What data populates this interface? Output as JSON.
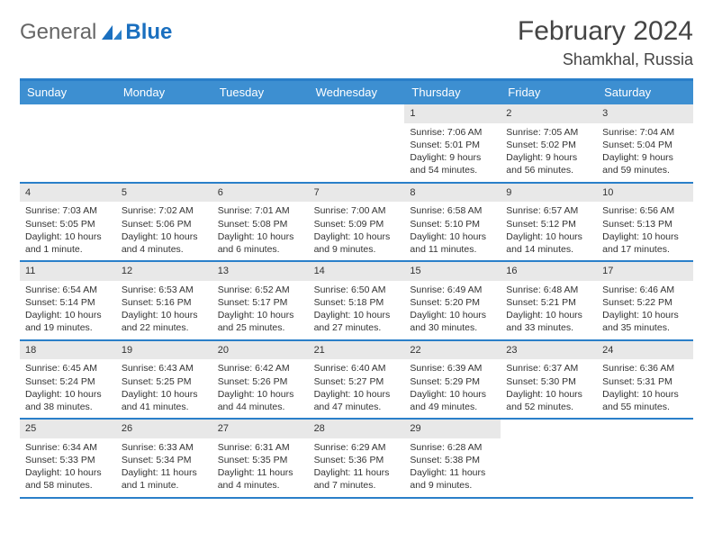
{
  "logo": {
    "word1": "General",
    "word2": "Blue"
  },
  "title": {
    "month": "February 2024",
    "location": "Shamkhal, Russia"
  },
  "colors": {
    "header_bg": "#3d8fd1",
    "header_border": "#2a7fc9",
    "datebar_bg": "#e8e8e8",
    "text": "#333333",
    "logo_blue": "#1a6fbf"
  },
  "dayheaders": [
    "Sunday",
    "Monday",
    "Tuesday",
    "Wednesday",
    "Thursday",
    "Friday",
    "Saturday"
  ],
  "weeks": [
    [
      {
        "date": "",
        "sunrise": "",
        "sunset": "",
        "daylight1": "",
        "daylight2": ""
      },
      {
        "date": "",
        "sunrise": "",
        "sunset": "",
        "daylight1": "",
        "daylight2": ""
      },
      {
        "date": "",
        "sunrise": "",
        "sunset": "",
        "daylight1": "",
        "daylight2": ""
      },
      {
        "date": "",
        "sunrise": "",
        "sunset": "",
        "daylight1": "",
        "daylight2": ""
      },
      {
        "date": "1",
        "sunrise": "Sunrise: 7:06 AM",
        "sunset": "Sunset: 5:01 PM",
        "daylight1": "Daylight: 9 hours",
        "daylight2": "and 54 minutes."
      },
      {
        "date": "2",
        "sunrise": "Sunrise: 7:05 AM",
        "sunset": "Sunset: 5:02 PM",
        "daylight1": "Daylight: 9 hours",
        "daylight2": "and 56 minutes."
      },
      {
        "date": "3",
        "sunrise": "Sunrise: 7:04 AM",
        "sunset": "Sunset: 5:04 PM",
        "daylight1": "Daylight: 9 hours",
        "daylight2": "and 59 minutes."
      }
    ],
    [
      {
        "date": "4",
        "sunrise": "Sunrise: 7:03 AM",
        "sunset": "Sunset: 5:05 PM",
        "daylight1": "Daylight: 10 hours",
        "daylight2": "and 1 minute."
      },
      {
        "date": "5",
        "sunrise": "Sunrise: 7:02 AM",
        "sunset": "Sunset: 5:06 PM",
        "daylight1": "Daylight: 10 hours",
        "daylight2": "and 4 minutes."
      },
      {
        "date": "6",
        "sunrise": "Sunrise: 7:01 AM",
        "sunset": "Sunset: 5:08 PM",
        "daylight1": "Daylight: 10 hours",
        "daylight2": "and 6 minutes."
      },
      {
        "date": "7",
        "sunrise": "Sunrise: 7:00 AM",
        "sunset": "Sunset: 5:09 PM",
        "daylight1": "Daylight: 10 hours",
        "daylight2": "and 9 minutes."
      },
      {
        "date": "8",
        "sunrise": "Sunrise: 6:58 AM",
        "sunset": "Sunset: 5:10 PM",
        "daylight1": "Daylight: 10 hours",
        "daylight2": "and 11 minutes."
      },
      {
        "date": "9",
        "sunrise": "Sunrise: 6:57 AM",
        "sunset": "Sunset: 5:12 PM",
        "daylight1": "Daylight: 10 hours",
        "daylight2": "and 14 minutes."
      },
      {
        "date": "10",
        "sunrise": "Sunrise: 6:56 AM",
        "sunset": "Sunset: 5:13 PM",
        "daylight1": "Daylight: 10 hours",
        "daylight2": "and 17 minutes."
      }
    ],
    [
      {
        "date": "11",
        "sunrise": "Sunrise: 6:54 AM",
        "sunset": "Sunset: 5:14 PM",
        "daylight1": "Daylight: 10 hours",
        "daylight2": "and 19 minutes."
      },
      {
        "date": "12",
        "sunrise": "Sunrise: 6:53 AM",
        "sunset": "Sunset: 5:16 PM",
        "daylight1": "Daylight: 10 hours",
        "daylight2": "and 22 minutes."
      },
      {
        "date": "13",
        "sunrise": "Sunrise: 6:52 AM",
        "sunset": "Sunset: 5:17 PM",
        "daylight1": "Daylight: 10 hours",
        "daylight2": "and 25 minutes."
      },
      {
        "date": "14",
        "sunrise": "Sunrise: 6:50 AM",
        "sunset": "Sunset: 5:18 PM",
        "daylight1": "Daylight: 10 hours",
        "daylight2": "and 27 minutes."
      },
      {
        "date": "15",
        "sunrise": "Sunrise: 6:49 AM",
        "sunset": "Sunset: 5:20 PM",
        "daylight1": "Daylight: 10 hours",
        "daylight2": "and 30 minutes."
      },
      {
        "date": "16",
        "sunrise": "Sunrise: 6:48 AM",
        "sunset": "Sunset: 5:21 PM",
        "daylight1": "Daylight: 10 hours",
        "daylight2": "and 33 minutes."
      },
      {
        "date": "17",
        "sunrise": "Sunrise: 6:46 AM",
        "sunset": "Sunset: 5:22 PM",
        "daylight1": "Daylight: 10 hours",
        "daylight2": "and 35 minutes."
      }
    ],
    [
      {
        "date": "18",
        "sunrise": "Sunrise: 6:45 AM",
        "sunset": "Sunset: 5:24 PM",
        "daylight1": "Daylight: 10 hours",
        "daylight2": "and 38 minutes."
      },
      {
        "date": "19",
        "sunrise": "Sunrise: 6:43 AM",
        "sunset": "Sunset: 5:25 PM",
        "daylight1": "Daylight: 10 hours",
        "daylight2": "and 41 minutes."
      },
      {
        "date": "20",
        "sunrise": "Sunrise: 6:42 AM",
        "sunset": "Sunset: 5:26 PM",
        "daylight1": "Daylight: 10 hours",
        "daylight2": "and 44 minutes."
      },
      {
        "date": "21",
        "sunrise": "Sunrise: 6:40 AM",
        "sunset": "Sunset: 5:27 PM",
        "daylight1": "Daylight: 10 hours",
        "daylight2": "and 47 minutes."
      },
      {
        "date": "22",
        "sunrise": "Sunrise: 6:39 AM",
        "sunset": "Sunset: 5:29 PM",
        "daylight1": "Daylight: 10 hours",
        "daylight2": "and 49 minutes."
      },
      {
        "date": "23",
        "sunrise": "Sunrise: 6:37 AM",
        "sunset": "Sunset: 5:30 PM",
        "daylight1": "Daylight: 10 hours",
        "daylight2": "and 52 minutes."
      },
      {
        "date": "24",
        "sunrise": "Sunrise: 6:36 AM",
        "sunset": "Sunset: 5:31 PM",
        "daylight1": "Daylight: 10 hours",
        "daylight2": "and 55 minutes."
      }
    ],
    [
      {
        "date": "25",
        "sunrise": "Sunrise: 6:34 AM",
        "sunset": "Sunset: 5:33 PM",
        "daylight1": "Daylight: 10 hours",
        "daylight2": "and 58 minutes."
      },
      {
        "date": "26",
        "sunrise": "Sunrise: 6:33 AM",
        "sunset": "Sunset: 5:34 PM",
        "daylight1": "Daylight: 11 hours",
        "daylight2": "and 1 minute."
      },
      {
        "date": "27",
        "sunrise": "Sunrise: 6:31 AM",
        "sunset": "Sunset: 5:35 PM",
        "daylight1": "Daylight: 11 hours",
        "daylight2": "and 4 minutes."
      },
      {
        "date": "28",
        "sunrise": "Sunrise: 6:29 AM",
        "sunset": "Sunset: 5:36 PM",
        "daylight1": "Daylight: 11 hours",
        "daylight2": "and 7 minutes."
      },
      {
        "date": "29",
        "sunrise": "Sunrise: 6:28 AM",
        "sunset": "Sunset: 5:38 PM",
        "daylight1": "Daylight: 11 hours",
        "daylight2": "and 9 minutes."
      },
      {
        "date": "",
        "sunrise": "",
        "sunset": "",
        "daylight1": "",
        "daylight2": ""
      },
      {
        "date": "",
        "sunrise": "",
        "sunset": "",
        "daylight1": "",
        "daylight2": ""
      }
    ]
  ]
}
